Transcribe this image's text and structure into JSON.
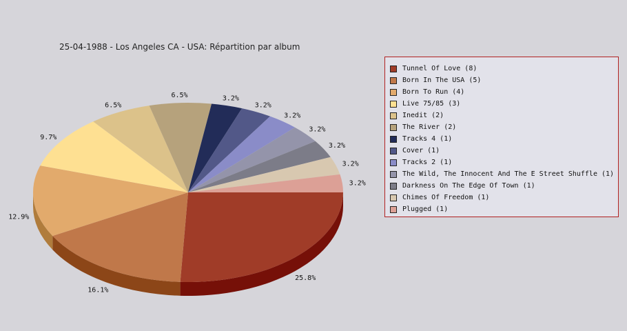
{
  "chart_data": {
    "type": "pie",
    "title": "25-04-1988 - Los Angeles CA - USA:  Répartition par album",
    "legend_position": "right",
    "slices": [
      {
        "label": "Tunnel Of Love",
        "value": 8,
        "percent_label": "25.8%",
        "legend_label": "Tunnel Of Love (8)",
        "color": "#a03c28",
        "side_color": "#761008"
      },
      {
        "label": "Born In The USA",
        "value": 5,
        "percent_label": "16.1%",
        "legend_label": "Born In The USA (5)",
        "color": "#c0784a",
        "side_color": "#8c4618"
      },
      {
        "label": "Born To Run",
        "value": 4,
        "percent_label": "12.9%",
        "legend_label": "Born To Run (4)",
        "color": "#e2aa6c",
        "side_color": "#b07c3c"
      },
      {
        "label": "Live 75/85",
        "value": 3,
        "percent_label": "9.7%",
        "legend_label": "Live 75/85 (3)",
        "color": "#fee092",
        "side_color": "#d0b060"
      },
      {
        "label": "Inedit",
        "value": 2,
        "percent_label": "6.5%",
        "legend_label": "Inedit (2)",
        "color": "#dcc28a",
        "side_color": "#ac945a"
      },
      {
        "label": "The River",
        "value": 2,
        "percent_label": "6.5%",
        "legend_label": "The River (2)",
        "color": "#b6a27c",
        "side_color": "#86724c"
      },
      {
        "label": "Tracks 4",
        "value": 1,
        "percent_label": "3.2%",
        "legend_label": "Tracks 4 (1)",
        "color": "#222c58",
        "side_color": "#121a38"
      },
      {
        "label": "Cover",
        "value": 1,
        "percent_label": "3.2%",
        "legend_label": "Cover (1)",
        "color": "#525888",
        "side_color": "#323660"
      },
      {
        "label": "Tracks 2",
        "value": 1,
        "percent_label": "3.2%",
        "legend_label": "Tracks 2 (1)",
        "color": "#8a8cc8",
        "side_color": "#5c5e98"
      },
      {
        "label": "The Wild, The Innocent And The E Street Shuffle",
        "value": 1,
        "percent_label": "3.2%",
        "legend_label": "The Wild, The Innocent And The E Street Shuffle (1)",
        "color": "#9494aa",
        "side_color": "#686880"
      },
      {
        "label": "Darkness On The Edge Of Town",
        "value": 1,
        "percent_label": "3.2%",
        "legend_label": "Darkness On The Edge Of Town (1)",
        "color": "#7c7c88",
        "side_color": "#54545e"
      },
      {
        "label": "Chimes Of Freedom",
        "value": 1,
        "percent_label": "3.2%",
        "legend_label": "Chimes Of Freedom (1)",
        "color": "#d8c8b0",
        "side_color": "#a89880"
      },
      {
        "label": "Plugged",
        "value": 1,
        "percent_label": "3.2%",
        "legend_label": "Plugged (1)",
        "color": "#dca096",
        "side_color": "#ac7066"
      }
    ]
  }
}
